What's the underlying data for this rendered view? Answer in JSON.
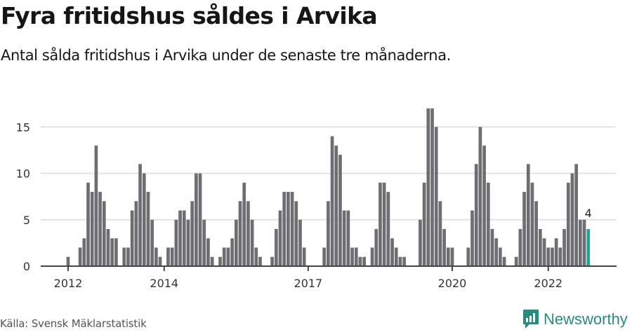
{
  "header": {
    "title": "Fyra fritidshus såldes i Arvika",
    "subtitle": "Antal sålda fritidshus i Arvika under de senaste tre månaderna."
  },
  "footer": {
    "source": "Källa: Svensk Mäklarstatistik",
    "brand": "Newsworthy"
  },
  "colors": {
    "bar": "#6e6d72",
    "highlight": "#1aa79a",
    "grid": "#e3e3e3",
    "axis": "#444444",
    "brand": "#2c8b80"
  },
  "chart_data": {
    "type": "bar",
    "title": "Fyra fritidshus såldes i Arvika",
    "subtitle": "Antal sålda fritidshus i Arvika under de senaste tre månaderna.",
    "xlabel": "",
    "ylabel": "",
    "ylim": [
      0,
      17
    ],
    "yticks": [
      0,
      5,
      10,
      15
    ],
    "xticks": [
      {
        "label": "2012",
        "index": 0
      },
      {
        "label": "2014",
        "index": 24
      },
      {
        "label": "2017",
        "index": 60
      },
      {
        "label": "2020",
        "index": 96
      },
      {
        "label": "2022",
        "index": 120
      }
    ],
    "grid": true,
    "legend": "none",
    "start": "2012-01",
    "frequency": "monthly",
    "highlight_last": true,
    "last_label": "4",
    "values": [
      1,
      0,
      0,
      2,
      3,
      9,
      8,
      13,
      8,
      7,
      4,
      3,
      3,
      0,
      2,
      2,
      6,
      7,
      11,
      10,
      8,
      5,
      2,
      1,
      0,
      2,
      2,
      5,
      6,
      6,
      5,
      7,
      10,
      10,
      5,
      3,
      1,
      0,
      1,
      2,
      2,
      3,
      5,
      7,
      9,
      7,
      5,
      2,
      1,
      0,
      0,
      1,
      4,
      6,
      8,
      8,
      8,
      7,
      5,
      2,
      0,
      0,
      0,
      0,
      2,
      7,
      14,
      13,
      12,
      6,
      6,
      2,
      2,
      1,
      1,
      0,
      2,
      4,
      9,
      9,
      8,
      3,
      2,
      1,
      1,
      0,
      0,
      0,
      5,
      9,
      17,
      17,
      15,
      7,
      4,
      2,
      2,
      0,
      0,
      0,
      2,
      6,
      11,
      15,
      13,
      9,
      4,
      3,
      2,
      1,
      0,
      0,
      1,
      4,
      8,
      11,
      9,
      7,
      4,
      3,
      2,
      2,
      3,
      2,
      4,
      9,
      10,
      11,
      5,
      5,
      4
    ]
  }
}
